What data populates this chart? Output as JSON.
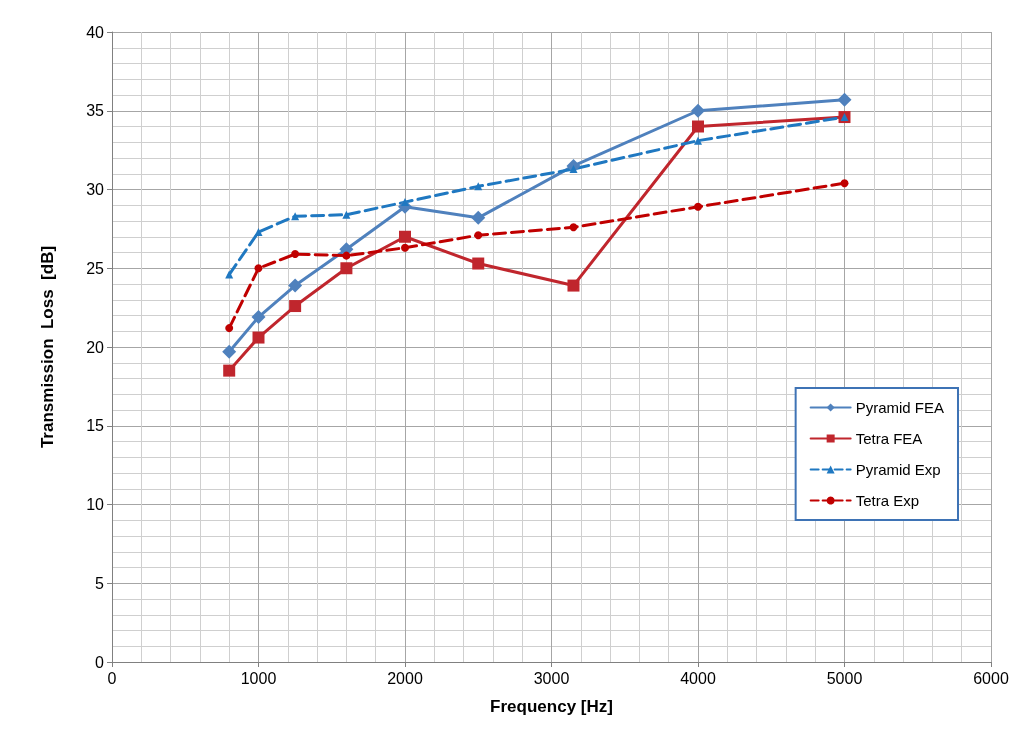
{
  "chart_data": {
    "type": "line",
    "xlabel": "Frequency [Hz]",
    "ylabel": "Transmission  Loss  [dB]",
    "xlim": [
      0,
      6000
    ],
    "xticks": [
      0,
      1000,
      2000,
      3000,
      4000,
      5000,
      6000
    ],
    "ylim": [
      0,
      40
    ],
    "yticks": [
      0,
      5,
      10,
      15,
      20,
      25,
      30,
      35,
      40
    ],
    "grid": true,
    "legend": "right",
    "x": [
      800,
      1000,
      1250,
      1600,
      2000,
      2500,
      3150,
      4000,
      5000
    ],
    "series": [
      {
        "name": "Pyramid FEA",
        "color": "#4f81bd",
        "marker": "diamond",
        "line_style": "solid",
        "values": [
          19.7,
          21.9,
          23.9,
          26.2,
          28.9,
          28.2,
          31.5,
          35.0,
          35.7
        ]
      },
      {
        "name": "Tetra FEA",
        "color": "#c0262d",
        "marker": "square",
        "line_style": "solid",
        "values": [
          18.5,
          20.6,
          22.6,
          25.0,
          27.0,
          25.3,
          23.9,
          34.0,
          34.6
        ]
      },
      {
        "name": "Pyramid Exp",
        "color": "#1f78c1",
        "marker": "triangle",
        "line_style": "dashed",
        "values": [
          24.6,
          27.3,
          28.3,
          28.4,
          29.2,
          30.2,
          31.3,
          33.1,
          34.6
        ]
      },
      {
        "name": "Tetra Exp",
        "color": "#c00000",
        "marker": "circle",
        "line_style": "dashed",
        "values": [
          21.2,
          25.0,
          25.9,
          25.8,
          26.3,
          27.1,
          27.6,
          28.9,
          30.4
        ]
      }
    ]
  }
}
